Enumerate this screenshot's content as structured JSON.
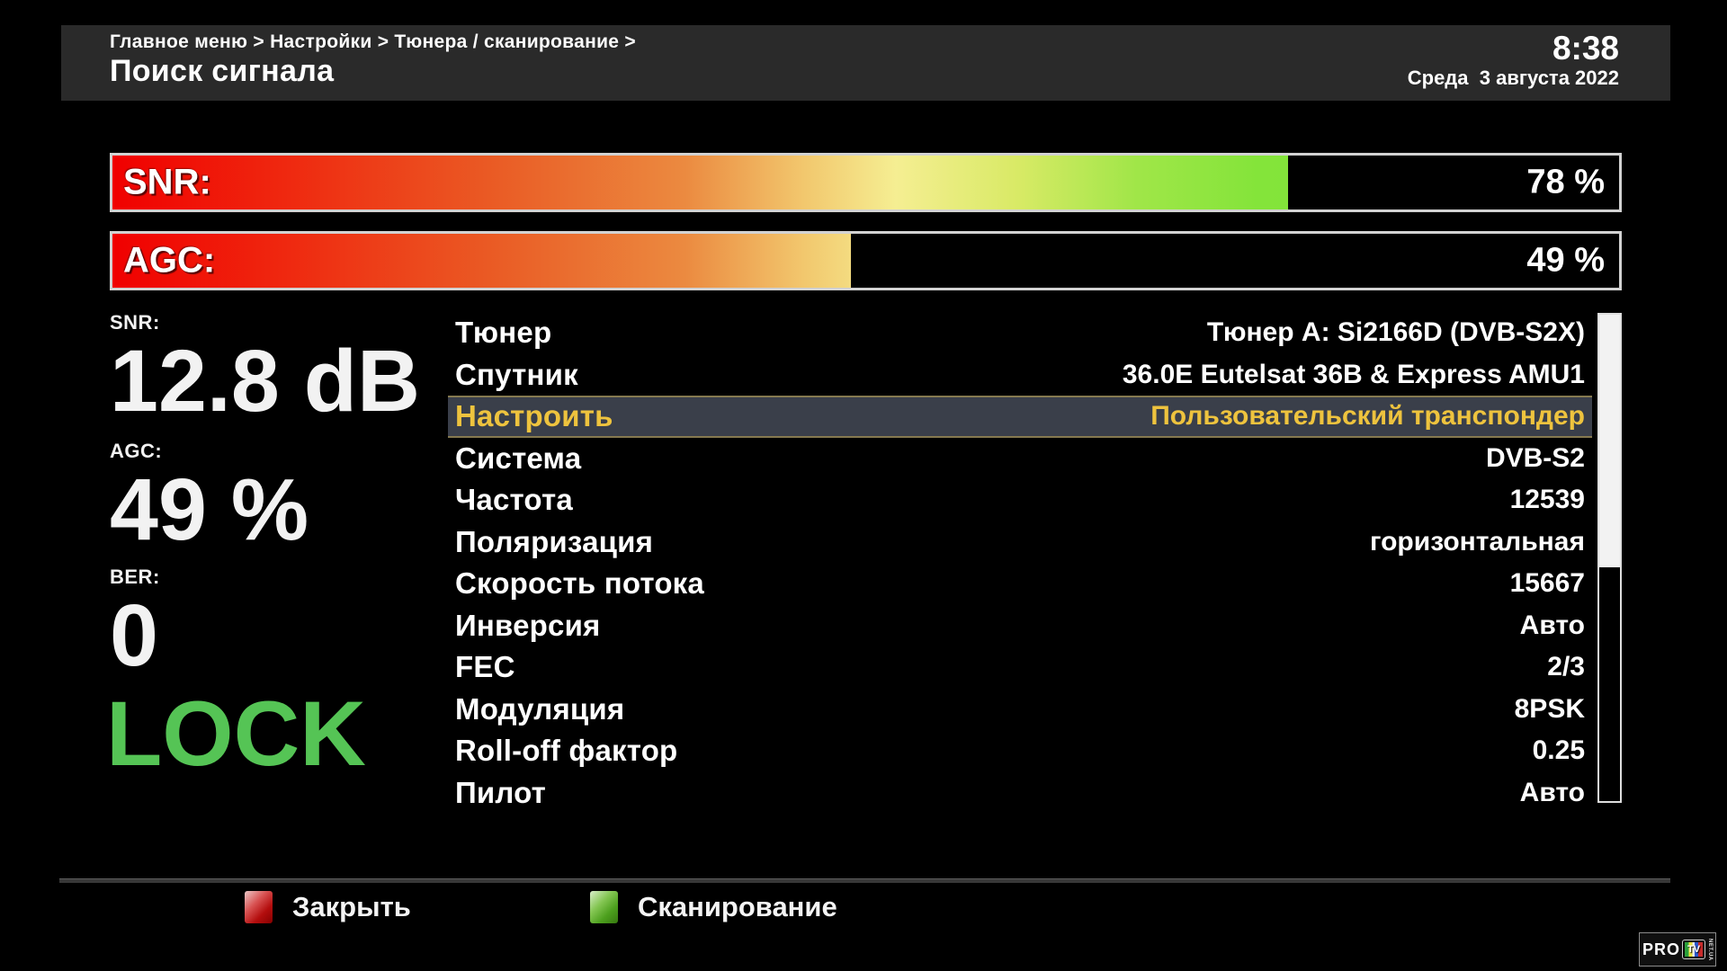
{
  "header": {
    "breadcrumb": "Главное меню > Настройки > Тюнера / сканирование >",
    "title": "Поиск сигнала",
    "time": "8:38",
    "date": "Среда  3 августа 2022"
  },
  "signal_bars": [
    {
      "id": "snr",
      "label": "SNR:",
      "value": "78 %",
      "percent": 78
    },
    {
      "id": "agc",
      "label": "AGC:",
      "value": "49 %",
      "percent": 49
    }
  ],
  "stats": [
    {
      "id": "snr",
      "label": "SNR:",
      "value": "12.8 dB"
    },
    {
      "id": "agc",
      "label": "AGC:",
      "value": "49 %"
    },
    {
      "id": "ber",
      "label": "BER:",
      "value": "0"
    }
  ],
  "lock_status": "LOCK",
  "settings": {
    "selected_index": 2,
    "rows": [
      {
        "label": "Тюнер",
        "value": "Тюнер A: Si2166D (DVB-S2X)"
      },
      {
        "label": "Спутник",
        "value": "36.0E Eutelsat 36B & Express AMU1"
      },
      {
        "label": "Настроить",
        "value": "Пользовательский транспондер"
      },
      {
        "label": "Система",
        "value": "DVB-S2"
      },
      {
        "label": "Частота",
        "value": "12539"
      },
      {
        "label": "Поляризация",
        "value": "горизонтальная"
      },
      {
        "label": "Скорость потока",
        "value": "15667"
      },
      {
        "label": "Инверсия",
        "value": "Авто"
      },
      {
        "label": "FEC",
        "value": "2/3"
      },
      {
        "label": "Модуляция",
        "value": "8PSK"
      },
      {
        "label": "Roll-off фактор",
        "value": "0.25"
      },
      {
        "label": "Пилот",
        "value": "Авто"
      }
    ]
  },
  "scrollbar": {
    "thumb_percent": 52
  },
  "footer": {
    "buttons": [
      {
        "key": "red",
        "label": "Закрыть"
      },
      {
        "key": "green",
        "label": "Сканирование"
      }
    ]
  },
  "logo": {
    "pro": "PRO",
    "tv": "TV",
    "suffix": "NET.UA"
  },
  "colors": {
    "lock_green": "#55c455",
    "highlight_text": "#eec33e",
    "highlight_bg": "#3a3f4a",
    "bar_border": "#d2d2d2"
  }
}
